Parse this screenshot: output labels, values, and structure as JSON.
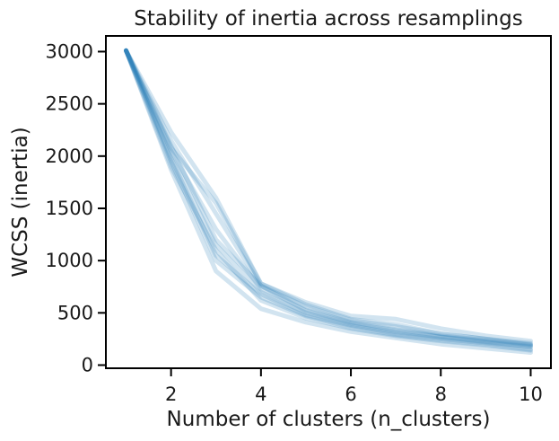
{
  "chart_data": {
    "type": "line",
    "title": "Stability of inertia across resamplings",
    "xlabel": "Number of clusters (n_clusters)",
    "ylabel": "WCSS (inertia)",
    "xlim": [
      0.55,
      10.45
    ],
    "ylim": [
      -30,
      3150
    ],
    "xticks": [
      2,
      4,
      6,
      8,
      10
    ],
    "yticks": [
      0,
      500,
      1000,
      1500,
      2000,
      2500,
      3000
    ],
    "grid": false,
    "legend": "none",
    "line_color": "#1f77b4",
    "line_opacity": 0.2,
    "x": [
      1,
      2,
      3,
      4,
      5,
      6,
      7,
      8,
      9,
      10
    ],
    "series": [
      {
        "values": [
          3010,
          2080,
          1550,
          780,
          580,
          440,
          390,
          300,
          250,
          190
        ]
      },
      {
        "values": [
          3010,
          1870,
          900,
          540,
          410,
          320,
          260,
          200,
          160,
          120
        ]
      },
      {
        "values": [
          3010,
          1950,
          1000,
          650,
          470,
          360,
          290,
          240,
          200,
          150
        ]
      },
      {
        "values": [
          3010,
          2000,
          1150,
          700,
          500,
          390,
          320,
          270,
          230,
          190
        ]
      },
      {
        "values": [
          3010,
          2050,
          1300,
          730,
          530,
          410,
          340,
          280,
          240,
          200
        ]
      },
      {
        "values": [
          3010,
          2150,
          1450,
          760,
          560,
          430,
          370,
          300,
          250,
          210
        ]
      },
      {
        "values": [
          3010,
          2230,
          1600,
          780,
          600,
          470,
          440,
          350,
          280,
          230
        ]
      },
      {
        "values": [
          3010,
          1980,
          1050,
          680,
          480,
          380,
          300,
          250,
          210,
          170
        ]
      },
      {
        "values": [
          3010,
          2100,
          1200,
          760,
          520,
          400,
          330,
          270,
          220,
          180
        ]
      },
      {
        "values": [
          3010,
          1900,
          1100,
          620,
          450,
          350,
          280,
          230,
          190,
          140
        ]
      }
    ]
  }
}
